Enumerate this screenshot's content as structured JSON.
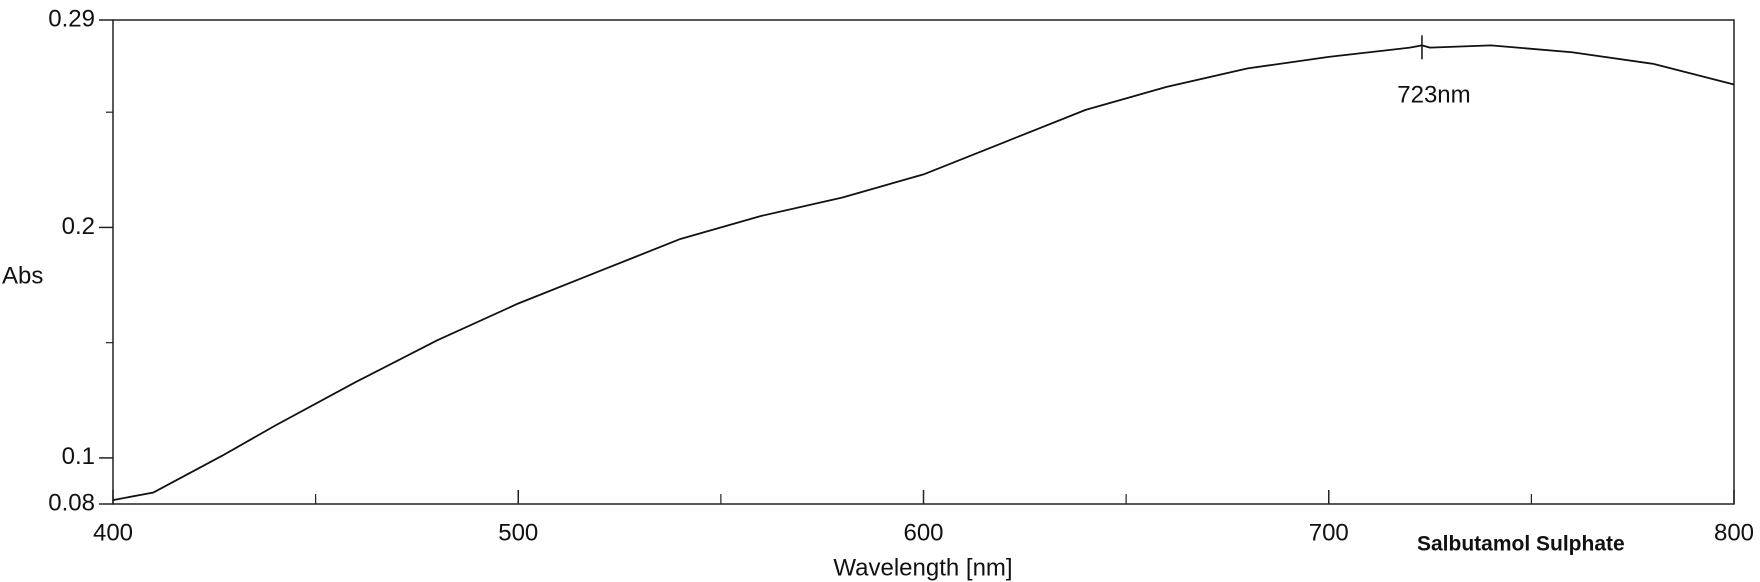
{
  "chart_data": {
    "type": "line",
    "x_label": "Wavelength [nm]",
    "y_label": "Abs",
    "xlim": [
      400,
      800
    ],
    "ylim": [
      0.08,
      0.29
    ],
    "xticks": [
      400,
      500,
      600,
      700,
      800
    ],
    "yticks": [
      0.08,
      0.1,
      0.2,
      0.29
    ],
    "xminorticks": [
      450,
      550,
      650,
      750
    ],
    "yminorticks": [
      0.15,
      0.25
    ],
    "x": [
      400,
      410,
      427,
      440,
      460,
      480,
      500,
      520,
      540,
      560,
      580,
      600,
      620,
      640,
      660,
      680,
      700,
      720,
      723,
      725,
      740,
      760,
      780,
      800
    ],
    "series": [
      {
        "name": "Salbutamol Sulphate",
        "color": "#111111",
        "values": [
          0.0817,
          0.085,
          0.101,
          0.114,
          0.133,
          0.151,
          0.167,
          0.181,
          0.195,
          0.205,
          0.213,
          0.223,
          0.237,
          0.251,
          0.261,
          0.269,
          0.274,
          0.278,
          0.279,
          0.278,
          0.279,
          0.276,
          0.271,
          0.262
        ]
      }
    ],
    "annotations": [
      {
        "label": "723nm",
        "x": 723,
        "y": 0.279
      }
    ]
  }
}
